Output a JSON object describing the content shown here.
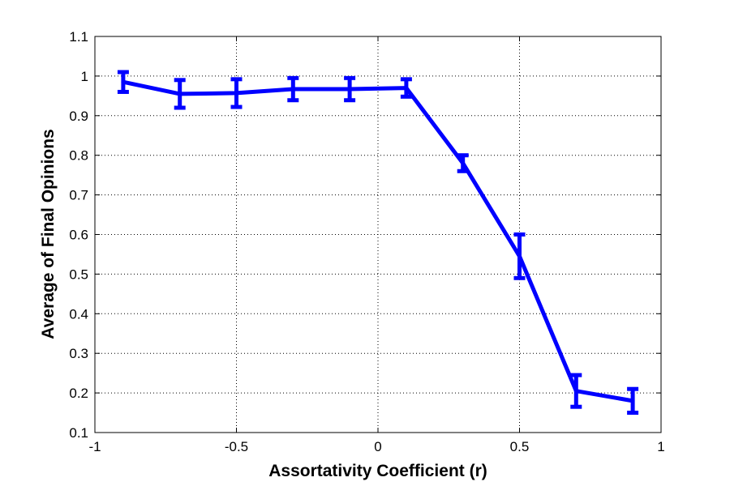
{
  "chart_data": {
    "type": "line",
    "title": "",
    "xlabel": "Assortativity Coefficient (r)",
    "ylabel": "Average of Final Opinions",
    "xlim": [
      -1,
      1
    ],
    "ylim": [
      0.1,
      1.1
    ],
    "xticks": [
      "-1",
      "-0.5",
      "0",
      "0.5",
      "1"
    ],
    "yticks": [
      "0.1",
      "0.2",
      "0.3",
      "0.4",
      "0.5",
      "0.6",
      "0.7",
      "0.8",
      "0.9",
      "1",
      "1.1"
    ],
    "grid": true,
    "legend": "none",
    "series": [
      {
        "color": "#0000ff",
        "x": [
          -0.9,
          -0.7,
          -0.5,
          -0.3,
          -0.1,
          0.1,
          0.3,
          0.5,
          0.7,
          0.9
        ],
        "y": [
          0.985,
          0.955,
          0.957,
          0.967,
          0.967,
          0.97,
          0.78,
          0.545,
          0.205,
          0.18
        ],
        "error": [
          0.025,
          0.035,
          0.035,
          0.028,
          0.028,
          0.022,
          0.02,
          0.055,
          0.04,
          0.03
        ]
      }
    ]
  }
}
